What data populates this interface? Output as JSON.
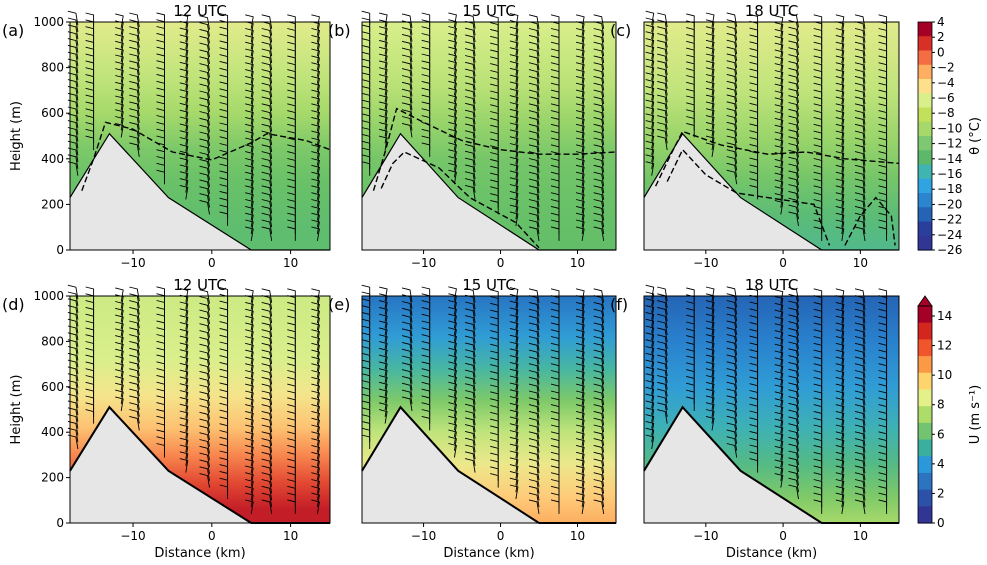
{
  "figure": {
    "colors": {
      "terrain": "#e6e6e6",
      "terrain_edge": "#000000",
      "isentrope": "#000000",
      "barb": "#000000"
    }
  },
  "chart_data": [
    {
      "type": "contourf",
      "panel": "(a)",
      "title": "12 UTC",
      "field": "theta",
      "xlabel": "",
      "ylabel": "Height (m)",
      "xlim": [
        -18,
        15
      ],
      "ylim": [
        0,
        1000
      ],
      "xticks": [
        "−10",
        "0",
        "10"
      ],
      "yticks": [
        "0",
        "200",
        "400",
        "600",
        "800",
        "1000"
      ],
      "layers": [
        {
          "y": 1000,
          "c": 0.62
        },
        {
          "y": 760,
          "c": 0.56
        },
        {
          "y": 600,
          "c": 0.52
        },
        {
          "y": 450,
          "c": 0.46
        },
        {
          "y": 300,
          "c": 0.43
        },
        {
          "y": 100,
          "c": 0.41
        },
        {
          "y": 0,
          "c": 0.41
        }
      ],
      "isentropes": [
        [
          [
            -16.5,
            260
          ],
          [
            -15,
            400
          ],
          [
            -13.5,
            560
          ],
          [
            -10,
            530
          ],
          [
            -5,
            430
          ],
          [
            0,
            395
          ],
          [
            5,
            470
          ],
          [
            7,
            510
          ],
          [
            12,
            480
          ],
          [
            15,
            440
          ]
        ]
      ]
    },
    {
      "type": "contourf",
      "panel": "(b)",
      "title": "15 UTC",
      "field": "theta",
      "xlabel": "",
      "ylabel": "",
      "xlim": [
        -18,
        15
      ],
      "ylim": [
        0,
        1000
      ],
      "xticks": [
        "−10",
        "0",
        "10"
      ],
      "yticks": [],
      "layers": [
        {
          "y": 1000,
          "c": 0.6
        },
        {
          "y": 720,
          "c": 0.55
        },
        {
          "y": 560,
          "c": 0.5
        },
        {
          "y": 400,
          "c": 0.45
        },
        {
          "y": 200,
          "c": 0.43
        },
        {
          "y": 0,
          "c": 0.42
        }
      ],
      "isentropes": [
        [
          [
            -16.5,
            260
          ],
          [
            -15,
            430
          ],
          [
            -13.5,
            620
          ],
          [
            -10,
            560
          ],
          [
            -5,
            480
          ],
          [
            0,
            440
          ],
          [
            5,
            420
          ],
          [
            10,
            420
          ],
          [
            15,
            430
          ]
        ],
        [
          [
            -15.5,
            270
          ],
          [
            -14,
            380
          ],
          [
            -12.5,
            430
          ],
          [
            -8,
            360
          ],
          [
            -4,
            230
          ],
          [
            2,
            120
          ],
          [
            5,
            10
          ]
        ]
      ]
    },
    {
      "type": "contourf",
      "panel": "(c)",
      "title": "18 UTC",
      "field": "theta",
      "xlabel": "",
      "ylabel": "",
      "xlim": [
        -18,
        15
      ],
      "ylim": [
        0,
        1000
      ],
      "xticks": [
        "−10",
        "0",
        "10"
      ],
      "yticks": [],
      "layers": [
        {
          "y": 1000,
          "c": 0.62
        },
        {
          "y": 700,
          "c": 0.56
        },
        {
          "y": 480,
          "c": 0.5
        },
        {
          "y": 320,
          "c": 0.45
        },
        {
          "y": 150,
          "c": 0.4
        },
        {
          "y": 0,
          "c": 0.37
        }
      ],
      "isentropes": [
        [
          [
            -16.5,
            280
          ],
          [
            -14.5,
            420
          ],
          [
            -13,
            520
          ],
          [
            -8,
            460
          ],
          [
            -2,
            420
          ],
          [
            3,
            430
          ],
          [
            8,
            400
          ],
          [
            15,
            380
          ]
        ],
        [
          [
            -15,
            300
          ],
          [
            -13,
            440
          ],
          [
            -10,
            330
          ],
          [
            -6,
            250
          ],
          [
            -2,
            230
          ],
          [
            4,
            200
          ],
          [
            6,
            20
          ]
        ],
        [
          [
            8,
            20
          ],
          [
            10,
            150
          ],
          [
            12,
            230
          ],
          [
            14,
            150
          ],
          [
            14.5,
            20
          ]
        ]
      ]
    },
    {
      "type": "contourf",
      "panel": "(d)",
      "title": "12 UTC",
      "field": "U",
      "xlabel": "Distance (km)",
      "ylabel": "Height (m)",
      "xlim": [
        -18,
        15
      ],
      "ylim": [
        0,
        1000
      ],
      "xticks": [
        "−10",
        "0",
        "10"
      ],
      "yticks": [
        "0",
        "200",
        "400",
        "600",
        "800",
        "1000"
      ],
      "layers": [
        {
          "y": 1000,
          "c": 0.58
        },
        {
          "y": 720,
          "c": 0.6
        },
        {
          "y": 560,
          "c": 0.66
        },
        {
          "y": 420,
          "c": 0.74
        },
        {
          "y": 300,
          "c": 0.84
        },
        {
          "y": 180,
          "c": 0.92
        },
        {
          "y": 60,
          "c": 0.97
        },
        {
          "y": 0,
          "c": 0.97
        }
      ]
    },
    {
      "type": "contourf",
      "panel": "(e)",
      "title": "15 UTC",
      "field": "U",
      "xlabel": "Distance (km)",
      "ylabel": "",
      "xlim": [
        -18,
        15
      ],
      "ylim": [
        0,
        1000
      ],
      "xticks": [
        "−10",
        "0",
        "10"
      ],
      "yticks": [],
      "layers": [
        {
          "y": 1000,
          "c": 0.14
        },
        {
          "y": 820,
          "c": 0.24
        },
        {
          "y": 680,
          "c": 0.34
        },
        {
          "y": 540,
          "c": 0.46
        },
        {
          "y": 400,
          "c": 0.56
        },
        {
          "y": 260,
          "c": 0.64
        },
        {
          "y": 120,
          "c": 0.72
        },
        {
          "y": 0,
          "c": 0.78
        }
      ]
    },
    {
      "type": "contourf",
      "panel": "(f)",
      "title": "18 UTC",
      "field": "U",
      "xlabel": "Distance (km)",
      "ylabel": "",
      "xlim": [
        -18,
        15
      ],
      "ylim": [
        0,
        1000
      ],
      "xticks": [
        "−10",
        "0",
        "10"
      ],
      "yticks": [],
      "layers": [
        {
          "y": 1000,
          "c": 0.1
        },
        {
          "y": 800,
          "c": 0.17
        },
        {
          "y": 600,
          "c": 0.24
        },
        {
          "y": 420,
          "c": 0.31
        },
        {
          "y": 260,
          "c": 0.38
        },
        {
          "y": 120,
          "c": 0.46
        },
        {
          "y": 0,
          "c": 0.52
        }
      ]
    }
  ],
  "terrain": [
    [
      -18,
      230
    ],
    [
      -13,
      510
    ],
    [
      -5.5,
      230
    ],
    [
      5,
      0
    ],
    [
      15,
      0
    ]
  ],
  "barb_columns_km": [
    -17,
    -15,
    -11.5,
    -9.2,
    -6,
    -3.3,
    -0.3,
    2,
    5,
    7.6,
    10.6,
    13.4
  ],
  "colorbars": [
    {
      "label": "θ (°C)",
      "ticks": [
        "4",
        "2",
        "0",
        "−2",
        "−4",
        "−6",
        "−8",
        "−10",
        "−12",
        "−14",
        "−16",
        "−18",
        "−20",
        "−22",
        "−24",
        "−26"
      ],
      "colors": [
        "#a50026",
        "#d73027",
        "#f46d43",
        "#fdae61",
        "#fee08b",
        "#d9ef8b",
        "#c2e05a",
        "#a6d96a",
        "#7dc870",
        "#5cb86a",
        "#40b4b0",
        "#2fa4e0",
        "#2b86cf",
        "#2563b5",
        "#2a3f9b",
        "#313695"
      ]
    },
    {
      "label": "U (m s⁻¹)",
      "ticks": [
        "14",
        "12",
        "10",
        "8",
        "6",
        "4",
        "2",
        "0"
      ],
      "colors": [
        "#a50026",
        "#d3261f",
        "#f0552b",
        "#fb9a46",
        "#fdd46d",
        "#e4f18b",
        "#aedc6a",
        "#72c471",
        "#3aaf9d",
        "#2b98d9",
        "#2d74c0",
        "#2b52a8",
        "#313695"
      ]
    }
  ]
}
